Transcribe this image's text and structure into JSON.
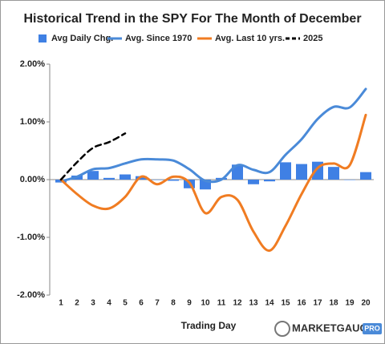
{
  "chart_data": {
    "type": "bar-line",
    "title": "Historical Trend in the SPY For The Month of December",
    "x_label": "Trading Day",
    "categories": [
      "1",
      "2",
      "3",
      "4",
      "5",
      "6",
      "7",
      "8",
      "9",
      "10",
      "11",
      "12",
      "13",
      "14",
      "15",
      "16",
      "17",
      "18",
      "19",
      "20"
    ],
    "ylim": [
      -2,
      2
    ],
    "yticks": [
      {
        "value": -2,
        "label": "-2.00%"
      },
      {
        "value": -1,
        "label": "-1.00%"
      },
      {
        "value": 0,
        "label": "0.00%"
      },
      {
        "value": 1,
        "label": "1.00%"
      },
      {
        "value": 2,
        "label": "2.00%"
      }
    ],
    "series": [
      {
        "name": "Avg Daily Chg.",
        "type": "bar",
        "color": "#3f80e4",
        "values": [
          -0.05,
          0.07,
          0.15,
          0.03,
          0.09,
          0.06,
          0.0,
          -0.02,
          -0.15,
          -0.17,
          0.03,
          0.26,
          -0.08,
          -0.03,
          0.3,
          0.27,
          0.31,
          0.22,
          0.0,
          0.13
        ]
      },
      {
        "name": "Avg. Since 1970",
        "type": "line",
        "color": "#4a8ad8",
        "values": [
          -0.03,
          0.05,
          0.18,
          0.2,
          0.28,
          0.35,
          0.35,
          0.33,
          0.18,
          -0.02,
          0.0,
          0.25,
          0.17,
          0.13,
          0.43,
          0.7,
          1.05,
          1.26,
          1.25,
          1.57
        ]
      },
      {
        "name": "Avg. Last 10 yrs.",
        "type": "line",
        "color": "#f07c22",
        "values": [
          0.0,
          -0.25,
          -0.45,
          -0.5,
          -0.3,
          0.05,
          -0.08,
          0.05,
          -0.05,
          -0.58,
          -0.3,
          -0.35,
          -0.9,
          -1.23,
          -0.8,
          -0.25,
          0.2,
          0.28,
          0.25,
          1.12
        ]
      },
      {
        "name": "2025",
        "type": "dashed-line",
        "color": "#000000",
        "values": [
          0.0,
          0.3,
          0.55,
          0.65,
          0.8,
          null,
          null,
          null,
          null,
          null,
          null,
          null,
          null,
          null,
          null,
          null,
          null,
          null,
          null,
          null
        ]
      }
    ],
    "logo": {
      "main": "MARKETGAUGE",
      "badge": "PRO"
    }
  }
}
